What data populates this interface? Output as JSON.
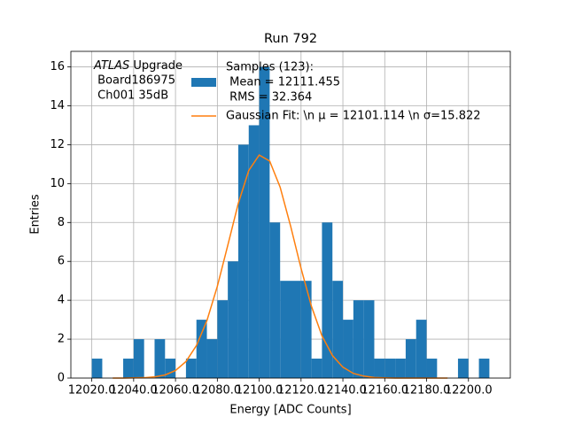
{
  "chart_data": {
    "type": "histogram",
    "title": "Run 792",
    "xlabel": "Energy [ADC Counts]",
    "ylabel": "Entries",
    "annotation": {
      "italic": "ATLAS",
      "lines": [
        " Upgrade",
        " Board186975",
        " Ch001 35dB"
      ]
    },
    "bins": [
      12020,
      12025,
      12030,
      12035,
      12040,
      12045,
      12050,
      12055,
      12060,
      12065,
      12070,
      12075,
      12080,
      12085,
      12090,
      12095,
      12100,
      12105,
      12110,
      12115,
      12120,
      12125,
      12130,
      12135,
      12140,
      12145,
      12150,
      12155,
      12160,
      12165,
      12170,
      12175,
      12180,
      12185,
      12190,
      12195,
      12200,
      12205,
      12210
    ],
    "series": [
      {
        "name": [
          "Samples (123):",
          " Mean = 12111.455",
          " RMS = 32.364"
        ],
        "color": "#1f77b4",
        "values": [
          1,
          0,
          0,
          1,
          2,
          0,
          2,
          1,
          0,
          1,
          3,
          2,
          4,
          6,
          12,
          13,
          16,
          8,
          5,
          5,
          5,
          1,
          8,
          5,
          3,
          4,
          4,
          1,
          1,
          1,
          2,
          3,
          1,
          0,
          0,
          1,
          0,
          1
        ]
      },
      {
        "name": [
          "Gaussian Fit: \\n μ = 12101.114 \\n σ=15.822"
        ],
        "color": "#ff7f0e",
        "kind": "line",
        "x": [
          12030,
          12035,
          12040,
          12045,
          12050,
          12055,
          12060,
          12065,
          12070,
          12075,
          12080,
          12085,
          12090,
          12095,
          12100,
          12105,
          12110,
          12115,
          12120,
          12125,
          12130,
          12135,
          12140,
          12145,
          12150,
          12155,
          12160,
          12165,
          12170,
          12175,
          12180,
          12185,
          12190
        ],
        "values": [
          0,
          0,
          0.01,
          0.02,
          0.06,
          0.16,
          0.39,
          0.85,
          1.67,
          2.95,
          4.72,
          6.83,
          8.98,
          10.67,
          11.47,
          11.16,
          9.82,
          7.82,
          5.64,
          3.68,
          2.17,
          1.16,
          0.56,
          0.24,
          0.1,
          0.03,
          0.01,
          0,
          0,
          0,
          0,
          0,
          0
        ]
      }
    ],
    "xlim": [
      12010,
      12220
    ],
    "ylim": [
      0,
      16.8
    ],
    "xticks": [
      {
        "value": 12020,
        "label": "12020.0"
      },
      {
        "value": 12040,
        "label": "12040.0"
      },
      {
        "value": 12060,
        "label": "12060.0"
      },
      {
        "value": 12080,
        "label": "12080.0"
      },
      {
        "value": 12100,
        "label": "12100.0"
      },
      {
        "value": 12120,
        "label": "12120.0"
      },
      {
        "value": 12140,
        "label": "12140.0"
      },
      {
        "value": 12160,
        "label": "12160.0"
      },
      {
        "value": 12180,
        "label": "12180.0"
      },
      {
        "value": 12200,
        "label": "12200.0"
      }
    ],
    "yticks": [
      0,
      2,
      4,
      6,
      8,
      10,
      12,
      14,
      16
    ],
    "grid": true
  }
}
